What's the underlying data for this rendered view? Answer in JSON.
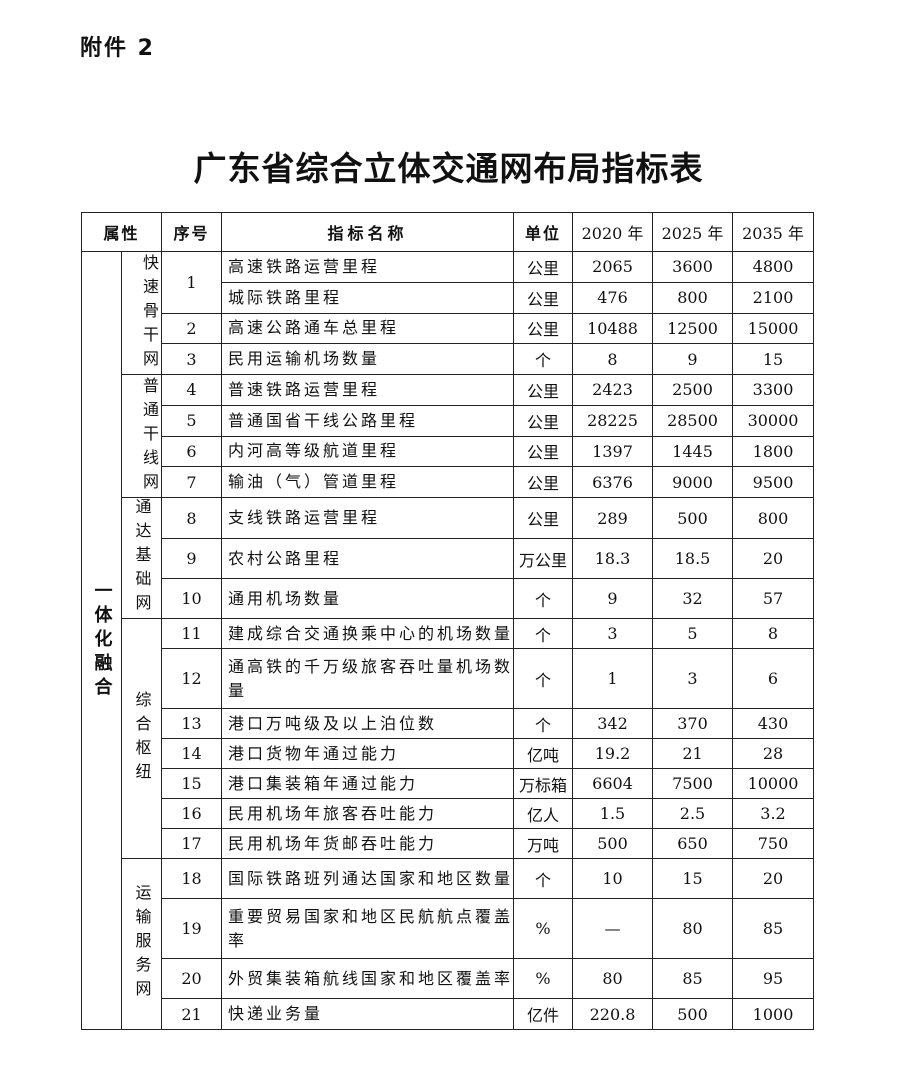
{
  "attachment_label": "附件 2",
  "title": "广东省综合立体交通网布局指标表",
  "table": {
    "headers": {
      "attribute": "属性",
      "seq": "序号",
      "name": "指标名称",
      "unit": "单位",
      "y2020": "2020 年",
      "y2025": "2025 年",
      "y2035": "2035 年"
    },
    "category": "一体化融合",
    "groups": [
      {
        "label": "快速骨干网",
        "rows": [
          {
            "seq": "1",
            "name": "高速铁路运营里程",
            "unit": "公里",
            "v2020": "2065",
            "v2025": "3600",
            "v2035": "4800"
          },
          {
            "seq": "",
            "name": "城际铁路里程",
            "unit": "公里",
            "v2020": "476",
            "v2025": "800",
            "v2035": "2100"
          },
          {
            "seq": "2",
            "name": "高速公路通车总里程",
            "unit": "公里",
            "v2020": "10488",
            "v2025": "12500",
            "v2035": "15000"
          },
          {
            "seq": "3",
            "name": "民用运输机场数量",
            "unit": "个",
            "v2020": "8",
            "v2025": "9",
            "v2035": "15"
          }
        ]
      },
      {
        "label": "普通干线网",
        "rows": [
          {
            "seq": "4",
            "name": "普速铁路运营里程",
            "unit": "公里",
            "v2020": "2423",
            "v2025": "2500",
            "v2035": "3300"
          },
          {
            "seq": "5",
            "name": "普通国省干线公路里程",
            "unit": "公里",
            "v2020": "28225",
            "v2025": "28500",
            "v2035": "30000"
          },
          {
            "seq": "6",
            "name": "内河高等级航道里程",
            "unit": "公里",
            "v2020": "1397",
            "v2025": "1445",
            "v2035": "1800"
          },
          {
            "seq": "7",
            "name": "输油（气）管道里程",
            "unit": "公里",
            "v2020": "6376",
            "v2025": "9000",
            "v2035": "9500"
          }
        ]
      },
      {
        "label": "通达基础网",
        "rows": [
          {
            "seq": "8",
            "name": "支线铁路运营里程",
            "unit": "公里",
            "v2020": "289",
            "v2025": "500",
            "v2035": "800"
          },
          {
            "seq": "9",
            "name": "农村公路里程",
            "unit": "万公里",
            "v2020": "18.3",
            "v2025": "18.5",
            "v2035": "20"
          },
          {
            "seq": "10",
            "name": "通用机场数量",
            "unit": "个",
            "v2020": "9",
            "v2025": "32",
            "v2035": "57"
          }
        ]
      },
      {
        "label": "综合枢纽",
        "rows": [
          {
            "seq": "11",
            "name": "建成综合交通换乘中心的机场数量",
            "unit": "个",
            "v2020": "3",
            "v2025": "5",
            "v2035": "8"
          },
          {
            "seq": "12",
            "name": "通高铁的千万级旅客吞吐量机场数量",
            "unit": "个",
            "v2020": "1",
            "v2025": "3",
            "v2035": "6"
          },
          {
            "seq": "13",
            "name": "港口万吨级及以上泊位数",
            "unit": "个",
            "v2020": "342",
            "v2025": "370",
            "v2035": "430"
          },
          {
            "seq": "14",
            "name": "港口货物年通过能力",
            "unit": "亿吨",
            "v2020": "19.2",
            "v2025": "21",
            "v2035": "28"
          },
          {
            "seq": "15",
            "name": "港口集装箱年通过能力",
            "unit": "万标箱",
            "v2020": "6604",
            "v2025": "7500",
            "v2035": "10000"
          },
          {
            "seq": "16",
            "name": "民用机场年旅客吞吐能力",
            "unit": "亿人",
            "v2020": "1.5",
            "v2025": "2.5",
            "v2035": "3.2"
          },
          {
            "seq": "17",
            "name": "民用机场年货邮吞吐能力",
            "unit": "万吨",
            "v2020": "500",
            "v2025": "650",
            "v2035": "750"
          }
        ]
      },
      {
        "label": "运输服务网",
        "rows": [
          {
            "seq": "18",
            "name": "国际铁路班列通达国家和地区数量",
            "unit": "个",
            "v2020": "10",
            "v2025": "15",
            "v2035": "20"
          },
          {
            "seq": "19",
            "name": "重要贸易国家和地区民航航点覆盖率",
            "unit": "%",
            "v2020": "—",
            "v2025": "80",
            "v2035": "85"
          },
          {
            "seq": "20",
            "name": "外贸集装箱航线国家和地区覆盖率",
            "unit": "%",
            "v2020": "80",
            "v2025": "85",
            "v2035": "95"
          },
          {
            "seq": "21",
            "name": "快递业务量",
            "unit": "亿件",
            "v2020": "220.8",
            "v2025": "500",
            "v2035": "1000"
          }
        ]
      }
    ]
  }
}
